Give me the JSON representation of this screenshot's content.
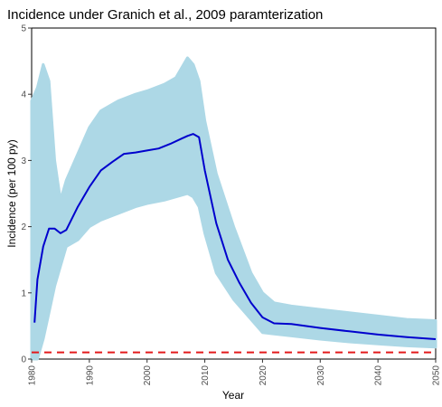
{
  "chart_data": {
    "type": "line",
    "title": "Incidence under Granich et al., 2009 paramterization",
    "xlabel": "Year",
    "ylabel": "Incidence (per 100 py)",
    "xlim": [
      1980,
      2050
    ],
    "ylim": [
      0,
      5
    ],
    "xticks": [
      1980,
      1990,
      2000,
      2010,
      2020,
      2030,
      2040,
      2050
    ],
    "yticks": [
      0,
      1,
      2,
      3,
      4,
      5
    ],
    "grid": false,
    "colors": {
      "simulation_band": "#add8e6",
      "mean_line": "#0000cd",
      "reference_line": "#e31a1c"
    },
    "series": [
      {
        "kind": "band",
        "style": "many light blue simulation runs",
        "x": [
          1980,
          1981,
          1982,
          1983,
          1984,
          1985,
          1986,
          1988,
          1990,
          1992,
          1995,
          1998,
          2000,
          2003,
          2005,
          2007,
          2008,
          2009,
          2010,
          2012,
          2015,
          2018,
          2020,
          2022,
          2025,
          2030,
          2035,
          2040,
          2045,
          2050
        ],
        "lower": [
          0.0,
          0.0,
          0.3,
          0.7,
          1.1,
          1.4,
          1.7,
          1.8,
          2.0,
          2.1,
          2.2,
          2.3,
          2.35,
          2.4,
          2.45,
          2.5,
          2.45,
          2.3,
          1.9,
          1.3,
          0.9,
          0.6,
          0.4,
          0.38,
          0.35,
          0.3,
          0.26,
          0.23,
          0.2,
          0.18
        ],
        "upper": [
          3.9,
          4.1,
          4.45,
          4.2,
          3.0,
          2.4,
          2.7,
          3.1,
          3.5,
          3.75,
          3.9,
          4.0,
          4.05,
          4.15,
          4.25,
          4.55,
          4.45,
          4.2,
          3.6,
          2.8,
          2.0,
          1.3,
          1.0,
          0.85,
          0.8,
          0.75,
          0.7,
          0.65,
          0.6,
          0.58
        ]
      },
      {
        "kind": "line",
        "style": "mean trajectory",
        "x": [
          1980.5,
          1981,
          1982,
          1983,
          1984,
          1985,
          1986,
          1988,
          1990,
          1992,
          1994,
          1996,
          1998,
          2000,
          2002,
          2004,
          2006,
          2007,
          2008,
          2009,
          2010,
          2012,
          2014,
          2016,
          2018,
          2020,
          2022,
          2025,
          2030,
          2035,
          2040,
          2045,
          2050
        ],
        "y": [
          0.55,
          1.2,
          1.7,
          1.97,
          1.97,
          1.9,
          1.95,
          2.3,
          2.6,
          2.85,
          2.98,
          3.1,
          3.12,
          3.15,
          3.18,
          3.25,
          3.33,
          3.37,
          3.4,
          3.35,
          2.85,
          2.05,
          1.5,
          1.15,
          0.85,
          0.63,
          0.54,
          0.53,
          0.47,
          0.42,
          0.37,
          0.33,
          0.3
        ]
      },
      {
        "kind": "hline",
        "style": "dashed reference",
        "y": 0.1
      }
    ]
  }
}
